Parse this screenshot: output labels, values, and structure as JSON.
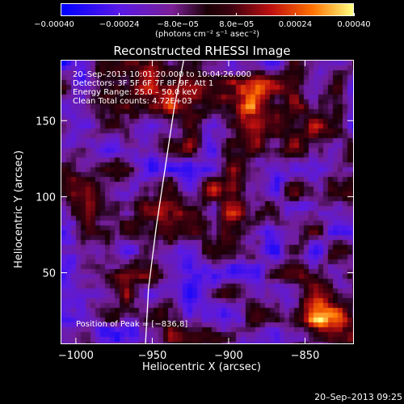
{
  "chart_data": {
    "type": "heatmap",
    "title": "Reconstructed RHESSI Image",
    "xlabel": "Heliocentric X (arcsec)",
    "ylabel": "Heliocentric Y (arcsec)",
    "xlim": [
      -1010,
      -818
    ],
    "ylim": [
      3,
      190
    ],
    "x_ticks": [
      -1000,
      -950,
      -900,
      -850
    ],
    "y_ticks": [
      50,
      100,
      150
    ],
    "x_tick_labels": [
      "−1000",
      "−950",
      "−900",
      "−850"
    ],
    "y_tick_labels": [
      "50",
      "100",
      "150"
    ],
    "colorbar": {
      "ticks": [
        -0.0004,
        -0.00024,
        -8e-05,
        8e-05,
        0.00024,
        0.0004
      ],
      "tick_labels": [
        "−0.00040",
        "−0.00024",
        "−8.0e−05",
        "8.0e−05",
        "0.00024",
        "0.00040"
      ],
      "units_line": "(photons cm⁻² s⁻¹ asec⁻²)"
    },
    "annotations": [
      "20–Sep–2013 10:01:20.000 to 10:04:26.000",
      "Detectors: 3F 5F 6F 7F 8F 9F, Att 1",
      "Energy Range: 25.0 – 50.0 keV",
      "Clean      Total counts: 4.72E+03"
    ],
    "peak_label": "Position of Peak = [−836,8]",
    "limb_curve": [
      [
        -955,
        3
      ],
      [
        -953,
        40
      ],
      [
        -948,
        80
      ],
      [
        -942,
        120
      ],
      [
        -936,
        160
      ],
      [
        -930,
        190
      ]
    ],
    "hotspots": [
      {
        "x": -840,
        "y": 20,
        "value": 0.0004
      },
      {
        "x": -880,
        "y": 160,
        "value": 0.0003
      },
      {
        "x": -945,
        "y": 165,
        "value": 0.0002
      },
      {
        "x": -990,
        "y": 110,
        "value": 0.00012
      },
      {
        "x": -910,
        "y": 80,
        "value": 0.00015
      }
    ]
  },
  "timestamp": "20–Sep–2013 09:25"
}
